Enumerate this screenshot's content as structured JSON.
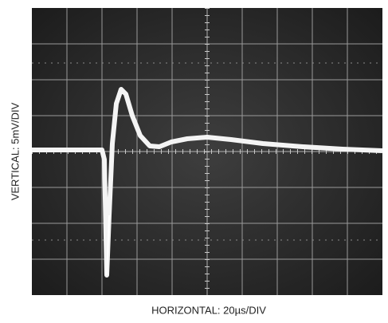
{
  "scope": {
    "vertical_label": "VERTICAL: 5mV/DIV",
    "horizontal_label": "HORIZONTAL: 20µs/DIV"
  }
}
